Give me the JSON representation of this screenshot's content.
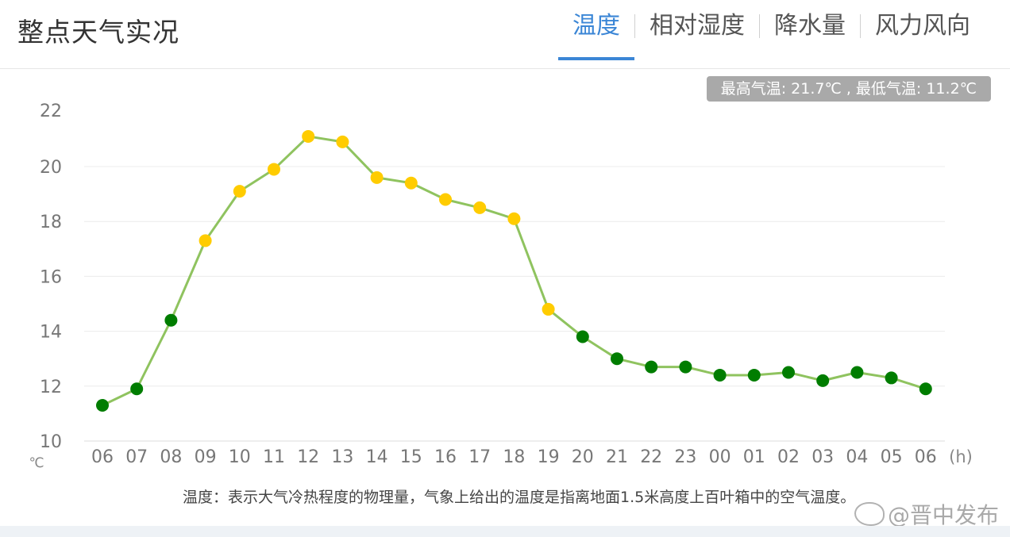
{
  "header": {
    "title": "整点天气实况",
    "tabs": [
      {
        "label": "温度",
        "active": true
      },
      {
        "label": "相对湿度",
        "active": false
      },
      {
        "label": "降水量",
        "active": false
      },
      {
        "label": "风力风向",
        "active": false
      }
    ]
  },
  "summary_badge": "最高气温: 21.7℃ , 最低气温: 11.2℃",
  "chart_data": {
    "type": "line",
    "x": [
      "06",
      "07",
      "08",
      "09",
      "10",
      "11",
      "12",
      "13",
      "14",
      "15",
      "16",
      "17",
      "18",
      "19",
      "20",
      "21",
      "22",
      "23",
      "00",
      "01",
      "02",
      "03",
      "04",
      "05",
      "06"
    ],
    "series": [
      {
        "values": [
          11.3,
          11.9,
          14.4,
          17.3,
          19.1,
          19.9,
          21.1,
          20.9,
          19.6,
          19.4,
          18.8,
          18.5,
          18.1,
          14.8,
          13.8,
          13.0,
          12.7,
          12.7,
          12.4,
          12.4,
          12.5,
          12.2,
          12.5,
          12.3,
          11.9
        ]
      }
    ],
    "point_colors": [
      "#007d00",
      "#007d00",
      "#007d00",
      "#ffcc00",
      "#ffcc00",
      "#ffcc00",
      "#ffcc00",
      "#ffcc00",
      "#ffcc00",
      "#ffcc00",
      "#ffcc00",
      "#ffcc00",
      "#ffcc00",
      "#ffcc00",
      "#007d00",
      "#007d00",
      "#007d00",
      "#007d00",
      "#007d00",
      "#007d00",
      "#007d00",
      "#007d00",
      "#007d00",
      "#007d00",
      "#007d00"
    ],
    "line_color": "#8fc35f",
    "y_ticks": [
      "22",
      "20",
      "18",
      "16",
      "14",
      "12",
      "10"
    ],
    "ylim": [
      10,
      22
    ],
    "y_unit": "℃",
    "x_unit": "(h)",
    "grid": true
  },
  "note": "温度：表示大气冷热程度的物理量，气象上给出的温度是指离地面1.5米高度上百叶箱中的空气温度。",
  "watermark": "@晋中发布",
  "colors": {
    "accent": "#3b86d6",
    "badge_bg": "#a9a9a9"
  }
}
